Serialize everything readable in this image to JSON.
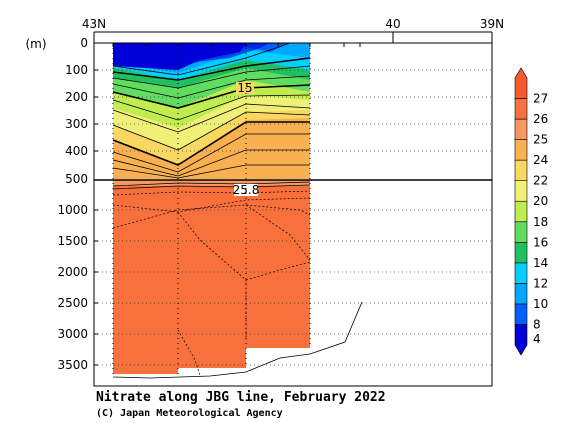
{
  "chart_data": {
    "type": "heatmap",
    "title": "Nitrate along JBG line, February 2022",
    "credit": "(C) Japan Meteorological Agency",
    "ylabel": "(m)",
    "x_ticks": [
      "43N",
      "40",
      "39N"
    ],
    "upper_panel": {
      "ylim": [
        0,
        500
      ],
      "ticks": [
        "0",
        "100",
        "200",
        "300",
        "400",
        "500"
      ],
      "contour_label": "15"
    },
    "lower_panel": {
      "ylim": [
        500,
        3800
      ],
      "ticks": [
        "1000",
        "1500",
        "2000",
        "2500",
        "3000",
        "3500"
      ],
      "contour_label": "25.8"
    },
    "colorbar": {
      "labels": [
        "4",
        "8",
        "10",
        "12",
        "14",
        "16",
        "18",
        "20",
        "22",
        "24",
        "25",
        "26",
        "27"
      ],
      "colors": [
        "#0000d8",
        "#0060ff",
        "#00a8ff",
        "#00d0ff",
        "#20c060",
        "#60dc60",
        "#c0ec50",
        "#f0f078",
        "#f8d860",
        "#f8b050",
        "#f89860",
        "#f87040",
        "#f85a30"
      ]
    },
    "stations_x_deg": [
      42.63,
      42.07,
      41.48
    ],
    "ridge_polyline": [
      [
        40.32,
        3000
      ],
      [
        40.38,
        2460
      ],
      [
        40.55,
        3080
      ],
      [
        40.93,
        3270
      ],
      [
        41.21,
        3300
      ],
      [
        41.65,
        3350
      ],
      [
        43.15,
        3560
      ],
      [
        43.0,
        3640
      ]
    ],
    "bottom_polyline": [
      [
        43.0,
        3800
      ],
      [
        43.0,
        3600
      ]
    ]
  }
}
